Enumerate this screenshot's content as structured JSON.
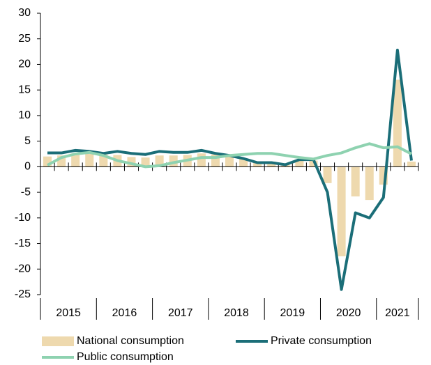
{
  "chart_data": {
    "type": "bar_line",
    "categories": [
      null,
      null,
      null,
      null,
      null,
      null,
      null,
      null,
      null,
      null,
      null,
      null,
      null,
      null,
      null,
      null,
      null,
      null,
      null,
      null,
      null,
      null,
      null,
      null,
      null,
      null,
      null
    ],
    "year_labels": [
      "2015",
      "2016",
      "2017",
      "2018",
      "2019",
      "2020",
      "2021"
    ],
    "series": [
      {
        "name": "National consumption",
        "kind": "bar",
        "color": "#eed9ae",
        "values": [
          2.0,
          2.2,
          2.6,
          2.5,
          2.4,
          2.3,
          1.9,
          1.8,
          2.2,
          2.2,
          2.3,
          2.6,
          2.4,
          2.0,
          1.5,
          1.0,
          1.0,
          0.6,
          1.2,
          1.2,
          -3.2,
          -17.5,
          -5.8,
          -6.5,
          -3.5,
          17.0,
          1.0
        ]
      },
      {
        "name": "Private consumption",
        "kind": "line",
        "color": "#1b6e78",
        "values": [
          2.7,
          2.7,
          3.2,
          3.0,
          2.6,
          3.0,
          2.6,
          2.4,
          3.0,
          2.8,
          2.8,
          3.2,
          2.6,
          2.2,
          1.6,
          0.8,
          0.8,
          0.4,
          1.4,
          1.4,
          -5.0,
          -24.0,
          -9.0,
          -10.0,
          -6.0,
          22.8,
          1.2
        ]
      },
      {
        "name": "Public consumption",
        "kind": "line",
        "color": "#8ed2b0",
        "values": [
          0.3,
          1.8,
          2.5,
          2.8,
          2.2,
          1.2,
          0.6,
          0.0,
          0.2,
          0.8,
          1.3,
          1.8,
          1.8,
          2.2,
          2.4,
          2.6,
          2.6,
          2.2,
          1.8,
          1.5,
          2.2,
          2.7,
          3.7,
          4.5,
          3.7,
          3.9,
          2.5
        ]
      }
    ],
    "ylim": [
      -25,
      30
    ],
    "yticks": [
      -25,
      -20,
      -15,
      -10,
      -5,
      0,
      5,
      10,
      15,
      20,
      25,
      30
    ],
    "grid": false,
    "legend": "bottom"
  }
}
